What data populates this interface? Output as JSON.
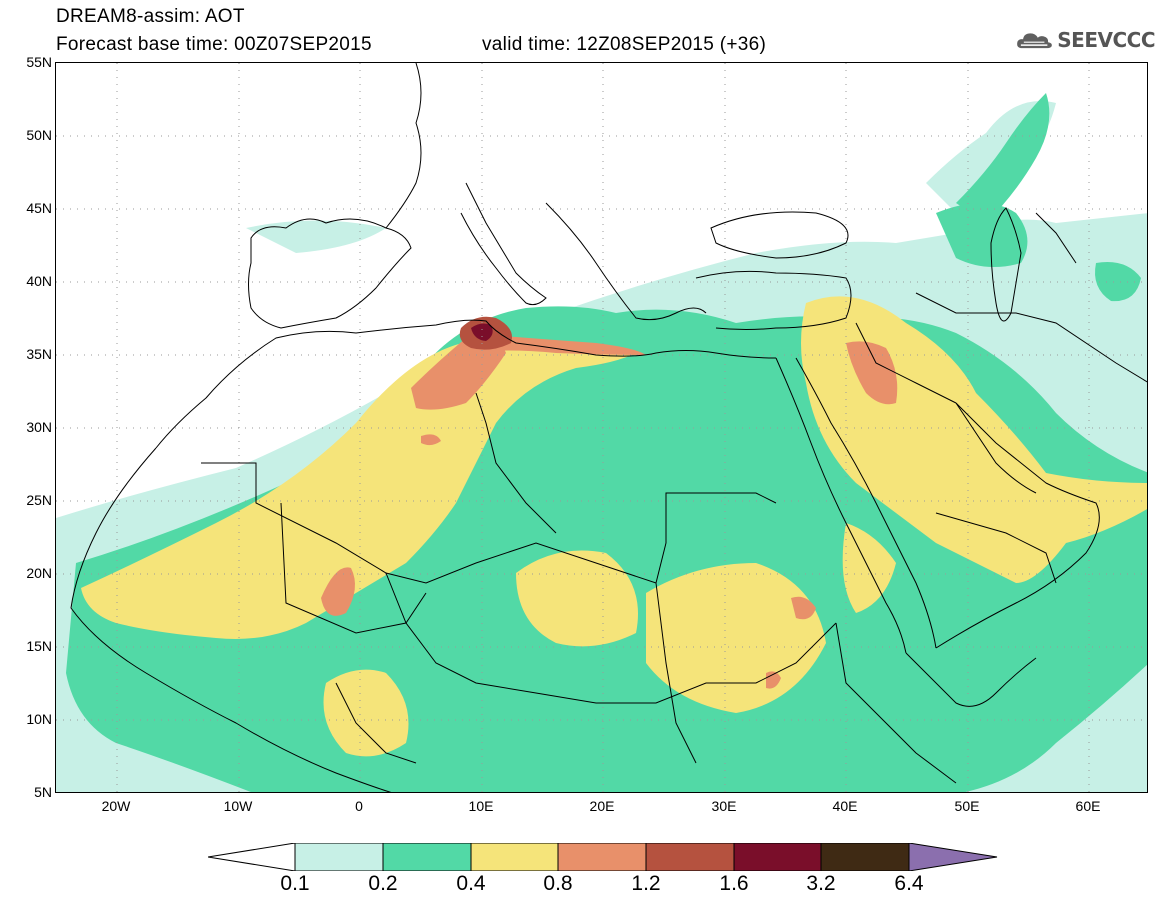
{
  "header": {
    "title_line1": "DREAM8-assim: AOT",
    "title_line2_base": "Forecast base time: 00Z07SEP2015",
    "title_line2_valid": "valid time: 12Z08SEP2015 (+36)"
  },
  "logo": {
    "text": "SEEVCCC",
    "icon": "cloud-icon",
    "color": "#555555"
  },
  "map": {
    "lon_range": [
      -25,
      65
    ],
    "lat_range": [
      5,
      55
    ],
    "lat_labels": [
      "55N",
      "50N",
      "45N",
      "40N",
      "35N",
      "30N",
      "25N",
      "20N",
      "15N",
      "10N",
      "5N"
    ],
    "lon_labels": [
      "20W",
      "10W",
      "0",
      "10E",
      "20E",
      "30E",
      "40E",
      "50E",
      "60E"
    ],
    "grid": "dotted"
  },
  "legend": {
    "labels": [
      "0.1",
      "0.2",
      "0.4",
      "0.8",
      "1.2",
      "1.6",
      "3.2",
      "6.4"
    ],
    "colors": [
      "#ffffff",
      "#c7f0e6",
      "#52d9a6",
      "#f5e47a",
      "#e8906a",
      "#b5523f",
      "#7a0e2a",
      "#3f2a14",
      "#8b6fae"
    ]
  }
}
